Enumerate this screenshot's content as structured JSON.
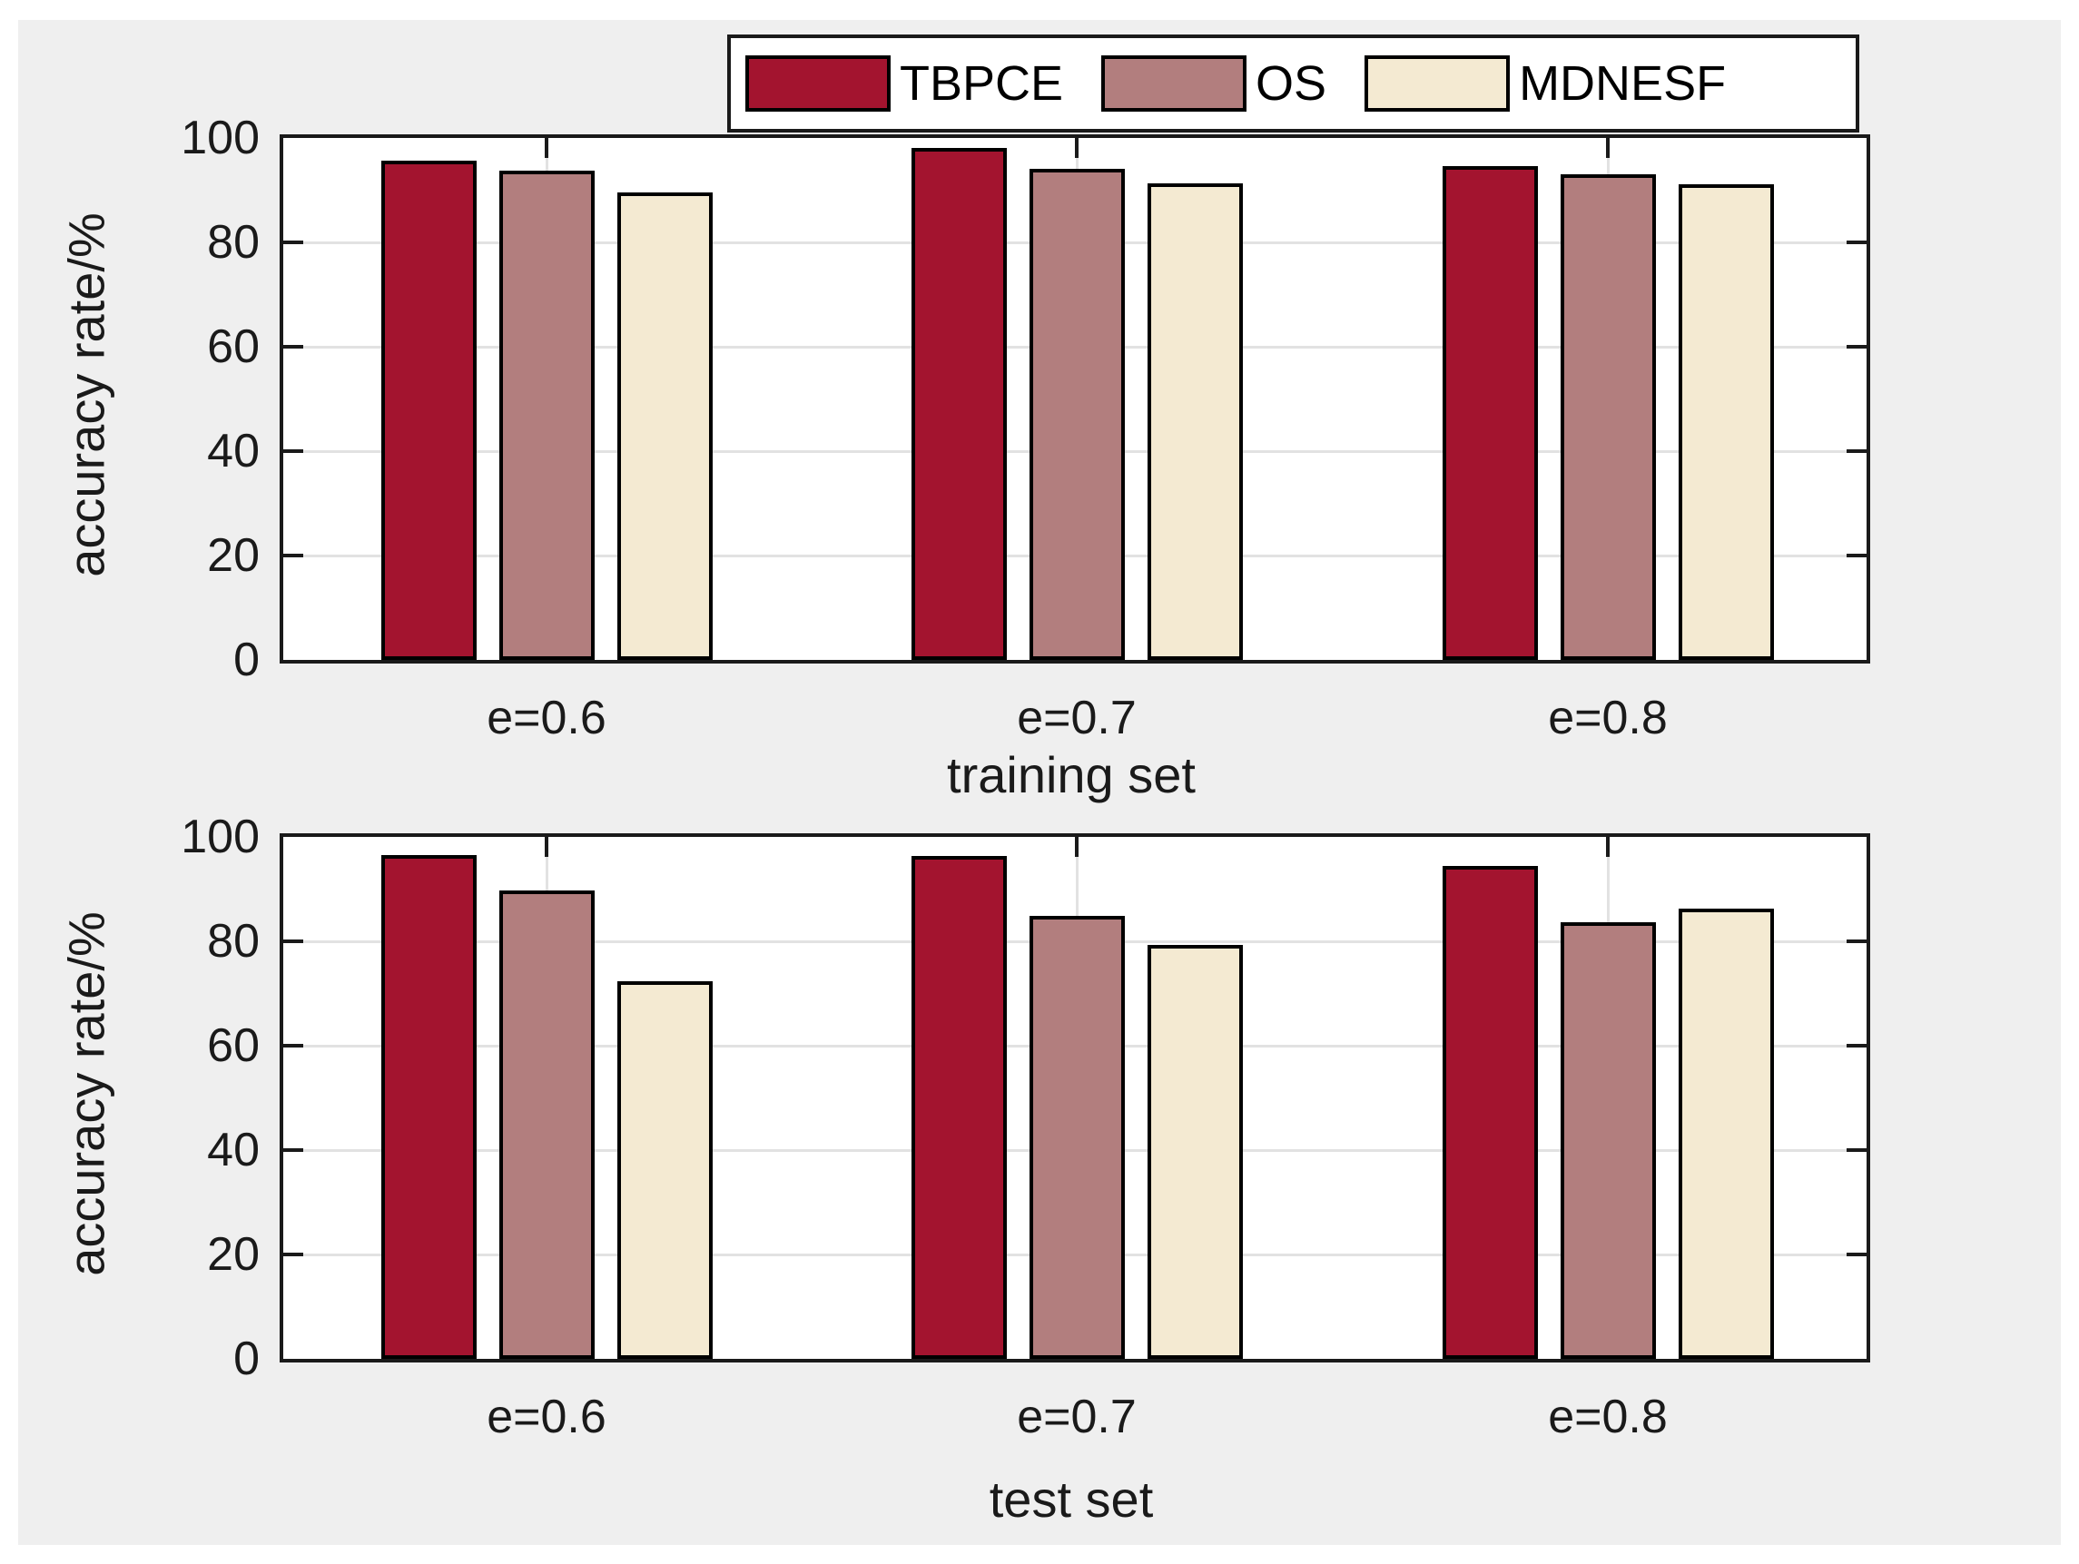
{
  "legend": {
    "entries": [
      {
        "label": "TBPCE",
        "color": "#A3142F"
      },
      {
        "label": "OS",
        "color": "#B27E7E"
      },
      {
        "label": "MDNESF",
        "color": "#F4EAD2"
      }
    ],
    "border_color": "#1a1a1a",
    "background": "#ffffff"
  },
  "figure": {
    "background": "#EFEFEF",
    "plot_background": "#ffffff",
    "gridline_color": "#E2E2E2",
    "axis_color": "#1a1a1a"
  },
  "chart_data": [
    {
      "type": "bar",
      "title": "",
      "xlabel": "training set",
      "ylabel": "accuracy rate/%",
      "categories": [
        "e=0.6",
        "e=0.7",
        "e=0.8"
      ],
      "series": [
        {
          "name": "TBPCE",
          "values": [
            95.7,
            98.1,
            94.6
          ]
        },
        {
          "name": "OS",
          "values": [
            93.8,
            94.1,
            93.1
          ]
        },
        {
          "name": "MDNESF",
          "values": [
            89.6,
            91.3,
            91.2
          ]
        }
      ],
      "ylim": [
        0,
        100
      ],
      "yticks": [
        0,
        20,
        40,
        60,
        80,
        100
      ],
      "grid": "on",
      "legend_position": "top-center-outside"
    },
    {
      "type": "bar",
      "title": "",
      "xlabel": "test set",
      "ylabel": "accuracy rate/%",
      "categories": [
        "e=0.6",
        "e=0.7",
        "e=0.8"
      ],
      "series": [
        {
          "name": "TBPCE",
          "values": [
            96.5,
            96.3,
            94.4
          ]
        },
        {
          "name": "OS",
          "values": [
            89.7,
            84.9,
            83.7
          ]
        },
        {
          "name": "MDNESF",
          "values": [
            72.3,
            79.3,
            86.3
          ]
        }
      ],
      "ylim": [
        0,
        100
      ],
      "yticks": [
        0,
        20,
        40,
        60,
        80,
        100
      ],
      "grid": "on",
      "legend_position": "none"
    }
  ]
}
